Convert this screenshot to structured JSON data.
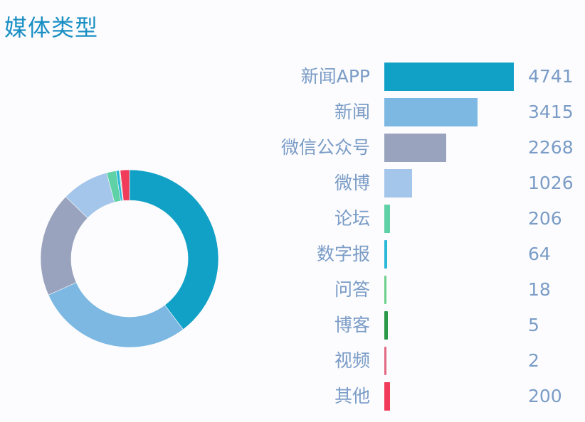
{
  "header": {
    "title": "媒体类型"
  },
  "chart_data": [
    {
      "type": "pie",
      "variant": "donut",
      "title": "媒体类型",
      "categories": [
        "新闻APP",
        "新闻",
        "微信公众号",
        "微博",
        "论坛",
        "数字报",
        "问答",
        "博客",
        "视频",
        "其他"
      ],
      "values": [
        4741,
        3415,
        2268,
        1026,
        206,
        64,
        18,
        5,
        2,
        200
      ],
      "colors": [
        "#12a1c6",
        "#7db8e2",
        "#9aa3bd",
        "#a4c6ea",
        "#5fd1a6",
        "#2ab8d8",
        "#6bd08a",
        "#2a9a48",
        "#e26a82",
        "#f03c5a"
      ],
      "legend": "none"
    },
    {
      "type": "bar",
      "orientation": "horizontal",
      "categories": [
        "新闻APP",
        "新闻",
        "微信公众号",
        "微博",
        "论坛",
        "数字报",
        "问答",
        "博客",
        "视频",
        "其他"
      ],
      "values": [
        4741,
        3415,
        2268,
        1026,
        206,
        64,
        18,
        5,
        2,
        200
      ],
      "colors": [
        "#12a1c6",
        "#7db8e2",
        "#9aa3bd",
        "#a4c6ea",
        "#5fd1a6",
        "#2ab8d8",
        "#6bd08a",
        "#2a9a48",
        "#e26a82",
        "#f03c5a"
      ],
      "data_labels": true,
      "xlabel": "",
      "ylabel": ""
    }
  ],
  "rows": [
    {
      "label": "新闻APP",
      "value": "4741"
    },
    {
      "label": "新闻",
      "value": "3415"
    },
    {
      "label": "微信公众号",
      "value": "2268"
    },
    {
      "label": "微博",
      "value": "1026"
    },
    {
      "label": "论坛",
      "value": "206"
    },
    {
      "label": "数字报",
      "value": "64"
    },
    {
      "label": "问答",
      "value": "18"
    },
    {
      "label": "博客",
      "value": "5"
    },
    {
      "label": "视频",
      "value": "2"
    },
    {
      "label": "其他",
      "value": "200"
    }
  ]
}
